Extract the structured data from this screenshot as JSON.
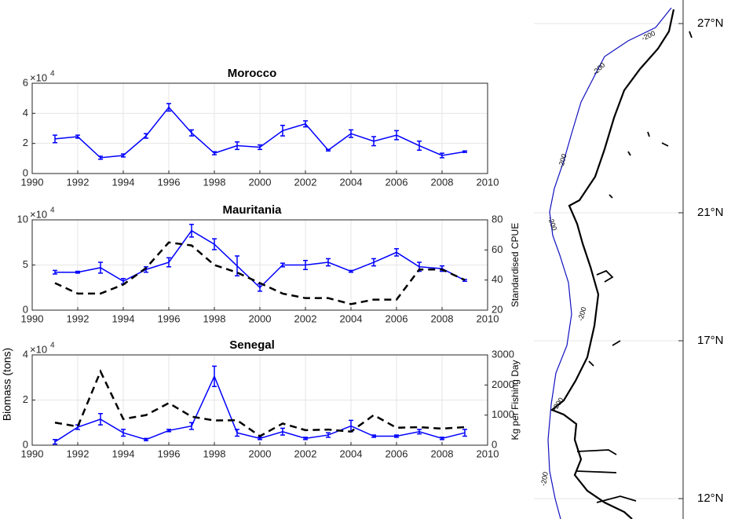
{
  "chart_data": [
    {
      "type": "line",
      "title": "Morocco",
      "x": [
        1991,
        1992,
        1993,
        1994,
        1995,
        1996,
        1997,
        1998,
        1999,
        2000,
        2001,
        2002,
        2003,
        2004,
        2005,
        2006,
        2007,
        2008,
        2009
      ],
      "xlim": [
        1990,
        2010
      ],
      "xticks": [
        1990,
        1992,
        1994,
        1996,
        1998,
        2000,
        2002,
        2004,
        2006,
        2008,
        2010
      ],
      "ylim": [
        0,
        6
      ],
      "yticks": [
        0,
        2,
        4,
        6
      ],
      "y_multiplier": "×10",
      "y_multiplier_exponent": "4",
      "grid": true,
      "series": [
        {
          "color": "#0000ff",
          "line_style": "solid",
          "values": [
            2.3,
            2.45,
            1.05,
            1.2,
            2.5,
            4.4,
            2.7,
            1.35,
            1.85,
            1.75,
            2.85,
            3.3,
            1.55,
            2.65,
            2.15,
            2.55,
            1.85,
            1.2,
            1.45
          ],
          "errors": [
            0.25,
            0.1,
            0.1,
            0.1,
            0.15,
            0.25,
            0.2,
            0.1,
            0.25,
            0.15,
            0.35,
            0.2,
            0.05,
            0.25,
            0.3,
            0.3,
            0.3,
            0.15,
            0.05
          ]
        }
      ]
    },
    {
      "type": "line",
      "title": "Mauritania",
      "x": [
        1991,
        1992,
        1993,
        1994,
        1995,
        1996,
        1997,
        1998,
        1999,
        2000,
        2001,
        2002,
        2003,
        2004,
        2005,
        2006,
        2007,
        2008,
        2009
      ],
      "xlim": [
        1990,
        2010
      ],
      "xticks": [
        1990,
        1992,
        1994,
        1996,
        1998,
        2000,
        2002,
        2004,
        2006,
        2008,
        2010
      ],
      "ylim": [
        0,
        10
      ],
      "yticks": [
        0,
        5,
        10
      ],
      "y_multiplier": "×10",
      "y_multiplier_exponent": "4",
      "y2lim": [
        20,
        80
      ],
      "y2ticks": [
        20,
        40,
        60,
        80
      ],
      "y2label": "Standardised CPUE",
      "grid": true,
      "series": [
        {
          "color": "#0000ff",
          "line_style": "solid",
          "values": [
            4.2,
            4.2,
            4.7,
            3.2,
            4.5,
            5.3,
            8.8,
            7.3,
            4.9,
            2.5,
            5.0,
            5.0,
            5.3,
            4.3,
            5.3,
            6.4,
            4.8,
            4.6,
            3.3
          ],
          "errors": [
            0.2,
            0.1,
            0.6,
            0.3,
            0.3,
            0.5,
            0.7,
            0.6,
            1.1,
            0.4,
            0.2,
            0.5,
            0.4,
            0.1,
            0.4,
            0.4,
            0.5,
            0.3,
            0.1
          ]
        },
        {
          "color": "#000000",
          "line_style": "dashed",
          "axis": "y2",
          "values": [
            38,
            31,
            31,
            37,
            48,
            65,
            63,
            50,
            45,
            38,
            31,
            28,
            28,
            24,
            27,
            27,
            47,
            47,
            40
          ]
        }
      ]
    },
    {
      "type": "line",
      "title": "Senegal",
      "ylabel": "Biomass (tons)",
      "x": [
        1991,
        1992,
        1993,
        1994,
        1995,
        1996,
        1997,
        1998,
        1999,
        2000,
        2001,
        2002,
        2003,
        2004,
        2005,
        2006,
        2007,
        2008,
        2009
      ],
      "xlim": [
        1990,
        2010
      ],
      "xticks": [
        1990,
        1992,
        1994,
        1996,
        1998,
        2000,
        2002,
        2004,
        2006,
        2008,
        2010
      ],
      "ylim": [
        0,
        4
      ],
      "yticks": [
        0,
        2,
        4
      ],
      "y_multiplier": "×10",
      "y_multiplier_exponent": "4",
      "y2lim": [
        0,
        3000
      ],
      "y2ticks": [
        0,
        1000,
        2000,
        3000
      ],
      "y2label": "Kg per Fishing Day",
      "grid": true,
      "series": [
        {
          "color": "#0000ff",
          "line_style": "solid",
          "values": [
            0.15,
            0.8,
            1.15,
            0.55,
            0.25,
            0.65,
            0.85,
            3.05,
            0.55,
            0.3,
            0.6,
            0.3,
            0.45,
            0.85,
            0.4,
            0.4,
            0.6,
            0.3,
            0.55
          ],
          "errors": [
            0.1,
            0.1,
            0.25,
            0.15,
            0.05,
            0.05,
            0.15,
            0.45,
            0.15,
            0.05,
            0.15,
            0.05,
            0.1,
            0.25,
            0.05,
            0.05,
            0.1,
            0.05,
            0.15
          ]
        },
        {
          "color": "#000000",
          "line_style": "dashed",
          "axis": "y2",
          "values": [
            750,
            620,
            2450,
            870,
            1000,
            1400,
            950,
            820,
            830,
            300,
            720,
            500,
            520,
            450,
            1000,
            580,
            600,
            550,
            600
          ]
        }
      ]
    }
  ],
  "map": {
    "lat_labels": [
      "27°N",
      "21°N",
      "17°N",
      "12°N"
    ],
    "contour_labels": [
      "-200",
      "-200",
      "-200",
      "-200",
      "-200",
      "-200",
      "-200"
    ]
  }
}
